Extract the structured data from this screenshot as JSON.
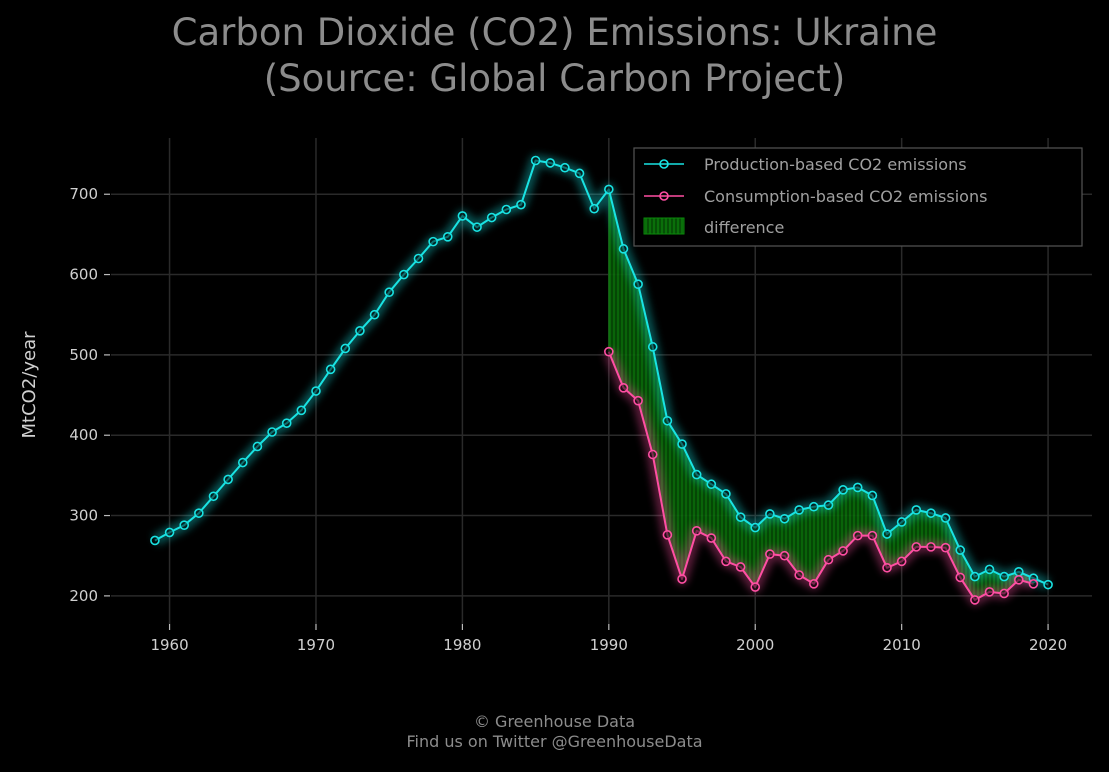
{
  "title": {
    "line1": "Carbon Dioxide (CO2) Emissions: Ukraine",
    "line2": "(Source: Global Carbon Project)"
  },
  "credit": {
    "line1": "© Greenhouse Data",
    "line2": "Find us on Twitter @GreenhouseData"
  },
  "colors": {
    "production": "#19e3e3",
    "consumption": "#ff4fa3",
    "difference": "#0a8a0a",
    "grid": "#2a2a2a",
    "background": "#000000"
  },
  "chart_data": {
    "type": "line",
    "title": "Carbon Dioxide (CO2) Emissions: Ukraine (Source: Global Carbon Project)",
    "xlabel": "",
    "ylabel": "MtCO2/year",
    "xlim": [
      1956,
      2023
    ],
    "ylim": [
      165,
      770
    ],
    "xticks": [
      1960,
      1970,
      1980,
      1990,
      2000,
      2010,
      2020
    ],
    "yticks": [
      200,
      300,
      400,
      500,
      600,
      700
    ],
    "grid": true,
    "legend_position": "top-right",
    "series": [
      {
        "name": "Production-based CO2 emissions",
        "x": [
          1959,
          1960,
          1961,
          1962,
          1963,
          1964,
          1965,
          1966,
          1967,
          1968,
          1969,
          1970,
          1971,
          1972,
          1973,
          1974,
          1975,
          1976,
          1977,
          1978,
          1979,
          1980,
          1981,
          1982,
          1983,
          1984,
          1985,
          1986,
          1987,
          1988,
          1989,
          1990,
          1991,
          1992,
          1993,
          1994,
          1995,
          1996,
          1997,
          1998,
          1999,
          2000,
          2001,
          2002,
          2003,
          2004,
          2005,
          2006,
          2007,
          2008,
          2009,
          2010,
          2011,
          2012,
          2013,
          2014,
          2015,
          2016,
          2017,
          2018,
          2019,
          2020
        ],
        "values": [
          269,
          279,
          288,
          303,
          324,
          345,
          366,
          386,
          404,
          415,
          431,
          455,
          482,
          508,
          530,
          550,
          578,
          600,
          620,
          641,
          647,
          673,
          659,
          671,
          681,
          687,
          742,
          739,
          733,
          726,
          682,
          706,
          632,
          588,
          510,
          418,
          389,
          351,
          339,
          327,
          298,
          285,
          302,
          296,
          307,
          311,
          313,
          332,
          335,
          325,
          277,
          292,
          307,
          303,
          297,
          257,
          224,
          233,
          224,
          230,
          222,
          214
        ]
      },
      {
        "name": "Consumption-based CO2 emissions",
        "x": [
          1990,
          1991,
          1992,
          1993,
          1994,
          1995,
          1996,
          1997,
          1998,
          1999,
          2000,
          2001,
          2002,
          2003,
          2004,
          2005,
          2006,
          2007,
          2008,
          2009,
          2010,
          2011,
          2012,
          2013,
          2014,
          2015,
          2016,
          2017,
          2018,
          2019
        ],
        "values": [
          504,
          459,
          443,
          376,
          276,
          221,
          281,
          272,
          243,
          236,
          211,
          252,
          250,
          226,
          215,
          245,
          256,
          275,
          275,
          235,
          243,
          261,
          261,
          260,
          223,
          195,
          205,
          203,
          220,
          215
        ]
      }
    ],
    "fill_between": {
      "name": "difference",
      "between": [
        "Production-based CO2 emissions",
        "Consumption-based CO2 emissions"
      ],
      "x_range": [
        1990,
        2019
      ]
    }
  }
}
